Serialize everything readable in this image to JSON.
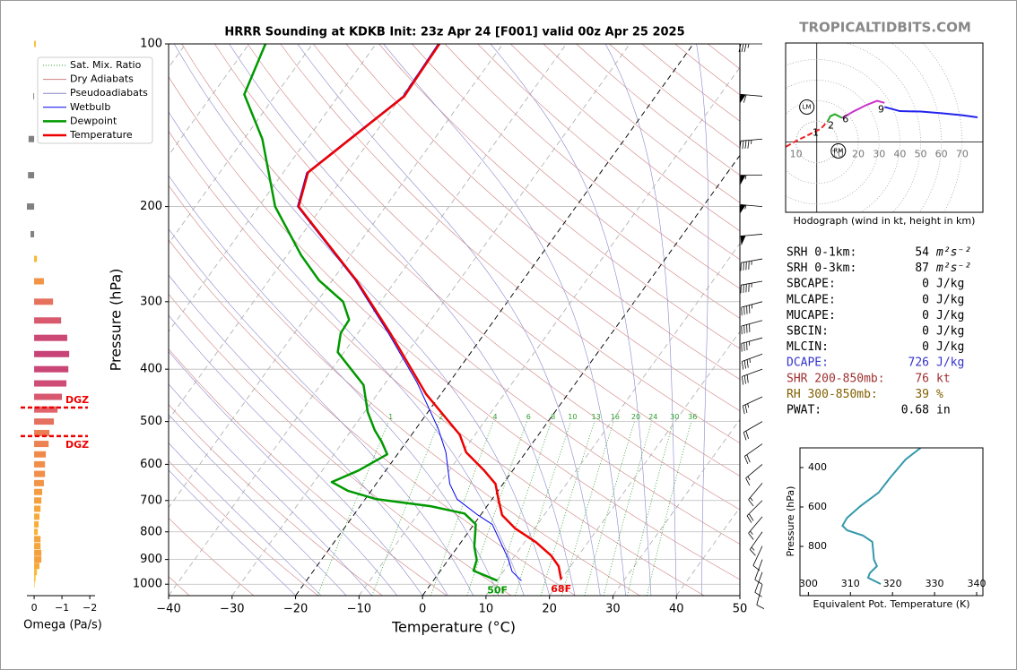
{
  "watermark": "TROPICALTIDBITS.COM",
  "chart_data": [
    {
      "type": "skewt",
      "title": "HRRR Sounding at KDKB Init: 23z Apr 24 [F001] valid 00z Apr 25 2025",
      "xlabel": "Temperature (°C)",
      "ylabel": "Pressure (hPa)",
      "xlim": [
        -40,
        50
      ],
      "ylim": [
        1050,
        100
      ],
      "log_scale": true,
      "grid": true,
      "xticks": [
        {
          "value": -40,
          "label": "−40"
        },
        {
          "value": -30,
          "label": "−30"
        },
        {
          "value": -20,
          "label": "−20"
        },
        {
          "value": -10,
          "label": "−10"
        },
        0,
        10,
        20,
        30,
        40,
        50
      ],
      "yticks": [
        100,
        200,
        300,
        400,
        500,
        600,
        700,
        800,
        900,
        1000
      ],
      "highlight_isotherms": [
        -20,
        0
      ],
      "legend_loc": "upper left",
      "reference_lines": [
        {
          "name": "Sat. Mix. Ratio",
          "color": "#2ca02c",
          "style": "dotted"
        },
        {
          "name": "Dry Adiabats",
          "color": "#d08080",
          "style": "solid"
        },
        {
          "name": "Pseudoadiabats",
          "color": "#8888cc",
          "style": "solid"
        }
      ],
      "mixing_ratios": [
        1,
        2,
        4,
        6,
        8,
        10,
        13,
        16,
        20,
        24,
        30,
        36
      ],
      "series": [
        {
          "name": "Wetbulb",
          "color": "#0000ee",
          "pressure": [
            985,
            948,
            895,
            775,
            745,
            696,
            652,
            570,
            514,
            424,
            343,
            274,
            200,
            173,
            125,
            100
          ],
          "values": [
            13.9,
            11.4,
            9.2,
            2.9,
            -0.4,
            -5.5,
            -8.4,
            -12.6,
            -16.6,
            -25.0,
            -35.2,
            -46.4,
            -63.9,
            -66.3,
            -59.8,
            -60.2
          ]
        },
        {
          "name": "Dewpoint",
          "color": "#009900",
          "surface_label": "50F",
          "pressure": [
            985,
            944,
            902,
            852,
            775,
            740,
            717,
            696,
            672,
            647,
            616,
            575,
            545,
            519,
            480,
            428,
            372,
            343,
            324,
            300,
            274,
            246,
            200,
            150,
            124,
            100
          ],
          "values": [
            10.1,
            5.2,
            4.5,
            2.6,
            0.3,
            -2.7,
            -8.9,
            -18.2,
            -23.6,
            -27.2,
            -24.3,
            -21.6,
            -23.9,
            -26.3,
            -29.5,
            -33.2,
            -41.0,
            -42.7,
            -42.9,
            -45.9,
            -52.1,
            -57.8,
            -67.4,
            -77.1,
            -85.0,
            -87.4
          ]
        },
        {
          "name": "Temperature",
          "color": "#ee0000",
          "surface_label": "68F",
          "pressure": [
            980,
            926,
            885,
            836,
            789,
            745,
            698,
            652,
            616,
            570,
            529,
            445,
            343,
            274,
            200,
            173,
            125,
            100
          ],
          "values": [
            20.0,
            18.1,
            15.7,
            11.8,
            7.0,
            3.4,
            1.1,
            -1.2,
            -4.5,
            -9.4,
            -12.4,
            -22.3,
            -34.9,
            -46.2,
            -63.7,
            -66.1,
            -59.6,
            -60.0
          ]
        }
      ],
      "wind_barbs": {
        "pressure": [
          100,
          125,
          150,
          175,
          200,
          225,
          250,
          275,
          300,
          325,
          350,
          375,
          400,
          450,
          500,
          550,
          600,
          650,
          700,
          750,
          800,
          850,
          900,
          950,
          1000
        ],
        "speed": [
          35,
          60,
          45,
          55,
          55,
          50,
          45,
          45,
          45,
          40,
          35,
          35,
          30,
          25,
          20,
          20,
          15,
          15,
          20,
          15,
          15,
          10,
          10,
          10,
          10
        ],
        "direction": [
          270,
          275,
          265,
          270,
          275,
          265,
          260,
          260,
          255,
          255,
          255,
          250,
          250,
          245,
          240,
          235,
          230,
          220,
          225,
          220,
          215,
          205,
          200,
          200,
          195
        ]
      }
    },
    {
      "type": "hodograph",
      "caption": "Hodograph (wind in kt, height in km)",
      "xlim": [
        -15,
        80
      ],
      "ylim": [
        -34,
        48
      ],
      "xticks": [
        {
          "value": -10,
          "label": "10"
        },
        10,
        20,
        30,
        40,
        50,
        60,
        70
      ],
      "series": [
        {
          "color": "#ee2222",
          "x": [
            -14.8,
            -10,
            -4,
            2,
            5.2
          ],
          "values": [
            -2.2,
            0.5,
            3.5,
            6.5,
            10
          ]
        },
        {
          "color": "#22aa22",
          "x": [
            5.2,
            6.5,
            8.7,
            12.2
          ],
          "values": [
            10,
            12.5,
            13.5,
            11.7
          ]
        },
        {
          "color": "#cc33cc",
          "x": [
            12.2,
            18,
            24,
            29,
            32.6
          ],
          "values": [
            11.7,
            15,
            18,
            20,
            19
          ]
        },
        {
          "color": "#2222ee",
          "x": [
            32.6,
            40,
            50,
            60,
            70,
            77.4
          ],
          "values": [
            17,
            15,
            14.8,
            14,
            13,
            12
          ]
        }
      ],
      "height_labels": [
        {
          "height": 1,
          "u": -0.6,
          "v": 4.3
        },
        {
          "height": 2,
          "u": 6.8,
          "v": 7.8
        },
        {
          "height": 6,
          "u": 13.8,
          "v": 10.9
        },
        {
          "height": 9,
          "u": 31,
          "v": 15.7
        }
      ],
      "storm_motion": [
        {
          "label": "LM",
          "u": -4.8,
          "v": 17
        },
        {
          "label": "RM",
          "u": 10.4,
          "v": -4.3
        }
      ]
    },
    {
      "type": "profile",
      "xlabel": "Equivalent Pot. Temperature (K)",
      "ylabel": "Pressure (hPa)",
      "xlim": [
        298,
        341.5
      ],
      "ylim": [
        1050,
        300
      ],
      "xticks": [
        300,
        310,
        320,
        330,
        340
      ],
      "yticks": [
        400,
        600,
        800
      ],
      "color": "#3399aa",
      "pressure": [
        991,
        959,
        936,
        900,
        868,
        777,
        745,
        718,
        695,
        655,
        595,
        527,
        450,
        359,
        300
      ],
      "values": [
        317.2,
        314.2,
        314.6,
        316.3,
        315.6,
        315.2,
        313.0,
        309.2,
        308.1,
        309.2,
        312.4,
        316.7,
        319.5,
        323.1,
        326.7
      ]
    },
    {
      "type": "omega",
      "xlabel": "Omega (Pa/s)",
      "xlim": [
        0.26,
        -2.19
      ],
      "ylim": [
        1050,
        100
      ],
      "log_scale": true,
      "xticks": [
        0,
        {
          "value": -1,
          "label": "−1"
        },
        {
          "value": -2,
          "label": "−2"
        }
      ],
      "pressure": [
        100,
        125,
        150,
        175,
        200,
        225,
        250,
        275,
        300,
        325,
        350,
        375,
        400,
        425,
        450,
        475,
        500,
        525,
        550,
        575,
        600,
        625,
        650,
        675,
        700,
        725,
        750,
        775,
        800,
        825,
        850,
        875,
        900,
        925,
        950,
        975,
        1000
      ],
      "values": [
        -0.06,
        0.03,
        0.2,
        0.22,
        0.26,
        0.13,
        -0.1,
        -0.35,
        -0.68,
        -0.97,
        -1.19,
        -1.26,
        -1.23,
        -1.16,
        -1.0,
        -0.84,
        -0.71,
        -0.55,
        -0.52,
        -0.42,
        -0.39,
        -0.39,
        -0.35,
        -0.29,
        -0.26,
        -0.23,
        -0.19,
        -0.16,
        -0.13,
        -0.23,
        -0.23,
        -0.26,
        -0.26,
        -0.19,
        -0.1,
        -0.05,
        -0.02
      ],
      "colors": {
        "positive": "#808080",
        "scale": [
          "#fcc52c",
          "#f08a4b",
          "#e0646a",
          "#c84478"
        ]
      },
      "dgz": [
        {
          "pressure": 471,
          "label": "DGZ",
          "color": "#ee0000"
        },
        {
          "pressure": 532,
          "label": "DGZ",
          "color": "#ee0000"
        }
      ]
    }
  ],
  "stats": [
    {
      "label": "SRH 0-1km:",
      "value": 54,
      "unit": "m²s⁻²",
      "color": "#000000"
    },
    {
      "label": "SRH 0-3km:",
      "value": 87,
      "unit": "m²s⁻²",
      "color": "#000000"
    },
    {
      "label": "SBCAPE:",
      "value": 0,
      "unit": "J/kg",
      "color": "#000000"
    },
    {
      "label": "MLCAPE:",
      "value": 0,
      "unit": "J/kg",
      "color": "#000000"
    },
    {
      "label": "MUCAPE:",
      "value": 0,
      "unit": "J/kg",
      "color": "#000000"
    },
    {
      "label": "SBCIN:",
      "value": 0,
      "unit": "J/kg",
      "color": "#000000"
    },
    {
      "label": "MLCIN:",
      "value": 0,
      "unit": "J/kg",
      "color": "#000000"
    },
    {
      "label": "DCAPE:",
      "value": 726,
      "unit": "J/kg",
      "color": "#3333cc"
    },
    {
      "label": "SHR 200-850mb:",
      "value": 76,
      "unit": "kt",
      "color": "#a03030"
    },
    {
      "label": "RH 300-850mb:",
      "value": 39,
      "unit": "%",
      "color": "#806000"
    },
    {
      "label": "PWAT:",
      "value": 0.68,
      "unit": "in",
      "color": "#000000"
    }
  ]
}
